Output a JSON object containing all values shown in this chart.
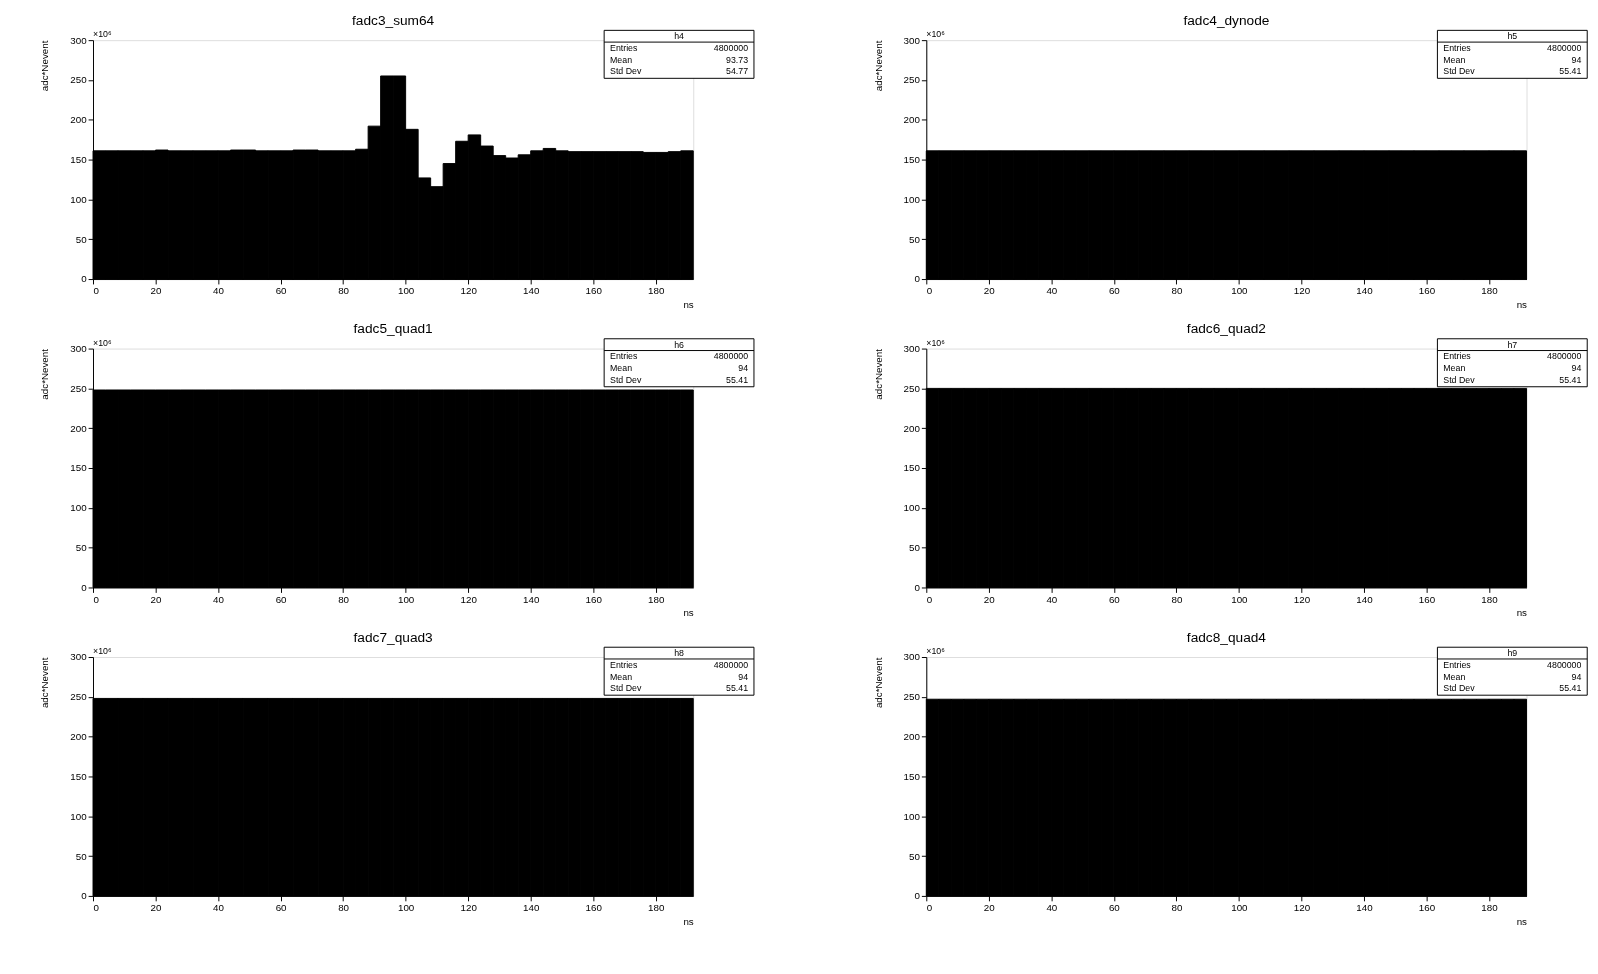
{
  "chart_data": [
    {
      "type": "histogram",
      "title": "fadc3_sum64",
      "xlabel": "ns",
      "ylabel": "adc*Nevent",
      "color": "#000000",
      "xlim": [
        0,
        192
      ],
      "ylim": [
        0,
        300
      ],
      "xticks": [
        0,
        20,
        40,
        60,
        80,
        100,
        120,
        140,
        160,
        180
      ],
      "yticks": [
        0,
        50,
        100,
        150,
        200,
        250,
        300
      ],
      "bins": [
        0,
        4,
        8,
        12,
        16,
        20,
        24,
        28,
        32,
        36,
        40,
        44,
        48,
        52,
        56,
        60,
        64,
        68,
        72,
        76,
        80,
        84,
        88,
        92,
        96,
        100,
        104,
        108,
        112,
        116,
        120,
        124,
        128,
        132,
        136,
        140,
        144,
        148,
        152,
        156,
        160,
        164,
        168,
        172,
        176,
        180,
        184,
        188,
        192
      ],
      "values": [
        161,
        161,
        161,
        161,
        161,
        162,
        161,
        161,
        161,
        161,
        161,
        162,
        162,
        161,
        161,
        161,
        162,
        162,
        161,
        161,
        161,
        163,
        192,
        255,
        255,
        188,
        127,
        116,
        145,
        173,
        181,
        167,
        155,
        152,
        156,
        161,
        164,
        161,
        160,
        160,
        160,
        160,
        160,
        160,
        159,
        159,
        160,
        161
      ],
      "annotations": [
        "×10⁶",
        "h4",
        "Entries",
        "4800000",
        "Mean",
        "93.73",
        "Std Dev",
        "54.77"
      ]
    },
    {
      "type": "histogram",
      "title": "fadc4_dynode",
      "xlabel": "ns",
      "ylabel": "adc*Nevent",
      "color": "#000000",
      "xlim": [
        0,
        192
      ],
      "ylim": [
        0,
        300
      ],
      "xticks": [
        0,
        20,
        40,
        60,
        80,
        100,
        120,
        140,
        160,
        180
      ],
      "yticks": [
        0,
        50,
        100,
        150,
        200,
        250,
        300
      ],
      "bins": [
        0,
        4,
        8,
        12,
        16,
        20,
        24,
        28,
        32,
        36,
        40,
        44,
        48,
        52,
        56,
        60,
        64,
        68,
        72,
        76,
        80,
        84,
        88,
        92,
        96,
        100,
        104,
        108,
        112,
        116,
        120,
        124,
        128,
        132,
        136,
        140,
        144,
        148,
        152,
        156,
        160,
        164,
        168,
        172,
        176,
        180,
        184,
        188,
        192
      ],
      "values": [
        161,
        161,
        161,
        161,
        161,
        161,
        161,
        161,
        161,
        161,
        161,
        161,
        161,
        161,
        161,
        161,
        161,
        161,
        161,
        161,
        161,
        161,
        161,
        161,
        161,
        161,
        161,
        161,
        161,
        161,
        161,
        161,
        161,
        161,
        161,
        161,
        161,
        161,
        161,
        161,
        161,
        161,
        161,
        161,
        161,
        161,
        161,
        161
      ],
      "annotations": [
        "×10⁶",
        "h5",
        "Entries",
        "4800000",
        "Mean",
        "94",
        "Std Dev",
        "55.41"
      ]
    },
    {
      "type": "histogram",
      "title": "fadc5_quad1",
      "xlabel": "ns",
      "ylabel": "adc*Nevent",
      "color": "#000000",
      "xlim": [
        0,
        192
      ],
      "ylim": [
        0,
        300
      ],
      "xticks": [
        0,
        20,
        40,
        60,
        80,
        100,
        120,
        140,
        160,
        180
      ],
      "yticks": [
        0,
        50,
        100,
        150,
        200,
        250,
        300
      ],
      "bins": [
        0,
        4,
        8,
        12,
        16,
        20,
        24,
        28,
        32,
        36,
        40,
        44,
        48,
        52,
        56,
        60,
        64,
        68,
        72,
        76,
        80,
        84,
        88,
        92,
        96,
        100,
        104,
        108,
        112,
        116,
        120,
        124,
        128,
        132,
        136,
        140,
        144,
        148,
        152,
        156,
        160,
        164,
        168,
        172,
        176,
        180,
        184,
        188,
        192
      ],
      "values": [
        248,
        248,
        248,
        248,
        248,
        248,
        248,
        248,
        248,
        248,
        248,
        248,
        248,
        248,
        248,
        248,
        248,
        248,
        248,
        248,
        248,
        248,
        248,
        248,
        248,
        248,
        248,
        248,
        248,
        248,
        248,
        248,
        248,
        248,
        248,
        248,
        248,
        248,
        248,
        248,
        248,
        248,
        248,
        248,
        248,
        248,
        248,
        248
      ],
      "annotations": [
        "×10⁶",
        "h6",
        "Entries",
        "4800000",
        "Mean",
        "94",
        "Std Dev",
        "55.41"
      ]
    },
    {
      "type": "histogram",
      "title": "fadc6_quad2",
      "xlabel": "ns",
      "ylabel": "adc*Nevent",
      "color": "#000000",
      "xlim": [
        0,
        192
      ],
      "ylim": [
        0,
        300
      ],
      "xticks": [
        0,
        20,
        40,
        60,
        80,
        100,
        120,
        140,
        160,
        180
      ],
      "yticks": [
        0,
        50,
        100,
        150,
        200,
        250,
        300
      ],
      "bins": [
        0,
        4,
        8,
        12,
        16,
        20,
        24,
        28,
        32,
        36,
        40,
        44,
        48,
        52,
        56,
        60,
        64,
        68,
        72,
        76,
        80,
        84,
        88,
        92,
        96,
        100,
        104,
        108,
        112,
        116,
        120,
        124,
        128,
        132,
        136,
        140,
        144,
        148,
        152,
        156,
        160,
        164,
        168,
        172,
        176,
        180,
        184,
        188,
        192
      ],
      "values": [
        250,
        250,
        250,
        250,
        250,
        250,
        250,
        250,
        250,
        250,
        250,
        250,
        250,
        250,
        250,
        250,
        250,
        250,
        250,
        250,
        250,
        250,
        250,
        250,
        250,
        250,
        250,
        250,
        250,
        250,
        250,
        250,
        250,
        250,
        250,
        250,
        250,
        250,
        250,
        250,
        250,
        250,
        250,
        250,
        250,
        250,
        250,
        250
      ],
      "annotations": [
        "×10⁶",
        "h7",
        "Entries",
        "4800000",
        "Mean",
        "94",
        "Std Dev",
        "55.41"
      ]
    },
    {
      "type": "histogram",
      "title": "fadc7_quad3",
      "xlabel": "ns",
      "ylabel": "adc*Nevent",
      "color": "#000000",
      "xlim": [
        0,
        192
      ],
      "ylim": [
        0,
        300
      ],
      "xticks": [
        0,
        20,
        40,
        60,
        80,
        100,
        120,
        140,
        160,
        180
      ],
      "yticks": [
        0,
        50,
        100,
        150,
        200,
        250,
        300
      ],
      "bins": [
        0,
        4,
        8,
        12,
        16,
        20,
        24,
        28,
        32,
        36,
        40,
        44,
        48,
        52,
        56,
        60,
        64,
        68,
        72,
        76,
        80,
        84,
        88,
        92,
        96,
        100,
        104,
        108,
        112,
        116,
        120,
        124,
        128,
        132,
        136,
        140,
        144,
        148,
        152,
        156,
        160,
        164,
        168,
        172,
        176,
        180,
        184,
        188,
        192
      ],
      "values": [
        248,
        248,
        248,
        248,
        248,
        248,
        248,
        248,
        248,
        248,
        248,
        248,
        248,
        248,
        248,
        248,
        248,
        248,
        248,
        248,
        248,
        248,
        248,
        248,
        248,
        248,
        248,
        248,
        248,
        248,
        248,
        248,
        248,
        248,
        248,
        248,
        248,
        248,
        248,
        248,
        248,
        248,
        248,
        248,
        248,
        248,
        248,
        248
      ],
      "annotations": [
        "×10⁶",
        "h8",
        "Entries",
        "4800000",
        "Mean",
        "94",
        "Std Dev",
        "55.41"
      ]
    },
    {
      "type": "histogram",
      "title": "fadc8_quad4",
      "xlabel": "ns",
      "ylabel": "adc*Nevent",
      "color": "#000000",
      "xlim": [
        0,
        192
      ],
      "ylim": [
        0,
        300
      ],
      "xticks": [
        0,
        20,
        40,
        60,
        80,
        100,
        120,
        140,
        160,
        180
      ],
      "yticks": [
        0,
        50,
        100,
        150,
        200,
        250,
        300
      ],
      "bins": [
        0,
        4,
        8,
        12,
        16,
        20,
        24,
        28,
        32,
        36,
        40,
        44,
        48,
        52,
        56,
        60,
        64,
        68,
        72,
        76,
        80,
        84,
        88,
        92,
        96,
        100,
        104,
        108,
        112,
        116,
        120,
        124,
        128,
        132,
        136,
        140,
        144,
        148,
        152,
        156,
        160,
        164,
        168,
        172,
        176,
        180,
        184,
        188,
        192
      ],
      "values": [
        247,
        247,
        247,
        247,
        247,
        247,
        247,
        247,
        247,
        247,
        247,
        247,
        247,
        247,
        247,
        247,
        247,
        247,
        247,
        247,
        247,
        247,
        247,
        247,
        247,
        247,
        247,
        247,
        247,
        247,
        247,
        247,
        247,
        247,
        247,
        247,
        247,
        247,
        247,
        247,
        247,
        247,
        247,
        247,
        247,
        247,
        247,
        247
      ],
      "annotations": [
        "×10⁶",
        "h9",
        "Entries",
        "4800000",
        "Mean",
        "94",
        "Std Dev",
        "55.41"
      ]
    }
  ]
}
